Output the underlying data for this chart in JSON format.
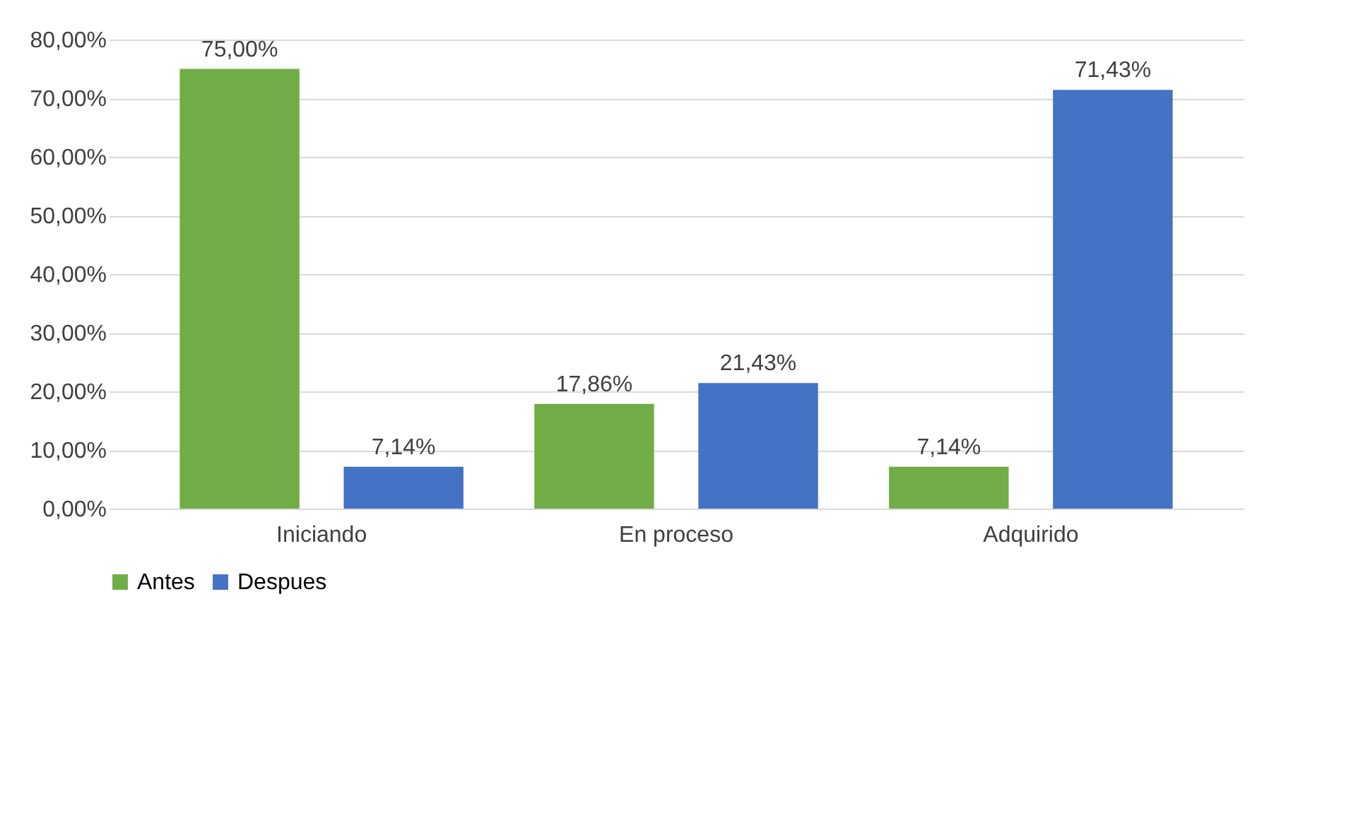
{
  "chart_data": {
    "type": "bar",
    "categories": [
      "Iniciando",
      "En proceso",
      "Adquirido"
    ],
    "series": [
      {
        "name": "Antes",
        "color": "#70ad47",
        "values": [
          75.0,
          17.86,
          7.14
        ],
        "value_labels": [
          "75,00%",
          "17,86%",
          "7,14%"
        ]
      },
      {
        "name": "Despues",
        "color": "#4472c4",
        "values": [
          7.14,
          21.43,
          71.43
        ],
        "value_labels": [
          "7,14%",
          "21,43%",
          "71,43%"
        ]
      }
    ],
    "ylim": [
      0,
      80
    ],
    "yticks": [
      {
        "value": 0,
        "label": "0,00%"
      },
      {
        "value": 10,
        "label": "10,00%"
      },
      {
        "value": 20,
        "label": "20,00%"
      },
      {
        "value": 30,
        "label": "30,00%"
      },
      {
        "value": 40,
        "label": "40,00%"
      },
      {
        "value": 50,
        "label": "50,00%"
      },
      {
        "value": 60,
        "label": "60,00%"
      },
      {
        "value": 70,
        "label": "70,00%"
      },
      {
        "value": 80,
        "label": "80,00%"
      }
    ],
    "grid": "y",
    "legend": "bottom"
  }
}
